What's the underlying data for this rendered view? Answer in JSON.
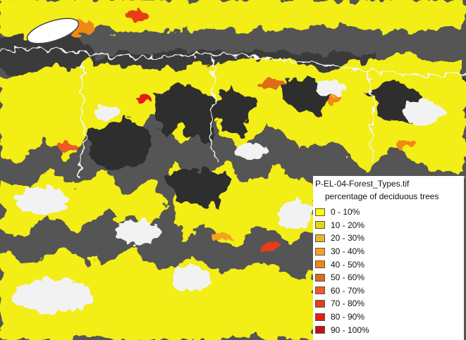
{
  "legend": {
    "title": "P-EL-04-Forest_Types.tif",
    "subtitle": "percentage of deciduous trees",
    "classes": [
      {
        "label": "0 - 10%",
        "color": "#ffff00"
      },
      {
        "label": "10 - 20%",
        "color": "#e8d40f"
      },
      {
        "label": "20 - 30%",
        "color": "#e6b82a"
      },
      {
        "label": "30 - 40%",
        "color": "#f3a31f"
      },
      {
        "label": "40 - 50%",
        "color": "#f08a12"
      },
      {
        "label": "50 - 60%",
        "color": "#de6d19"
      },
      {
        "label": "60 - 70%",
        "color": "#ef5a28"
      },
      {
        "label": "70 - 80%",
        "color": "#e83d16"
      },
      {
        "label": "80 - 90%",
        "color": "#e21e16"
      },
      {
        "label": "90 - 100%",
        "color": "#c90e12"
      }
    ]
  },
  "map": {
    "palette": {
      "forest": "#f2ee16",
      "terrain": "#555555",
      "snow": "#f2f2f2",
      "river": "#f5f5f5",
      "shade": "#222222"
    }
  }
}
